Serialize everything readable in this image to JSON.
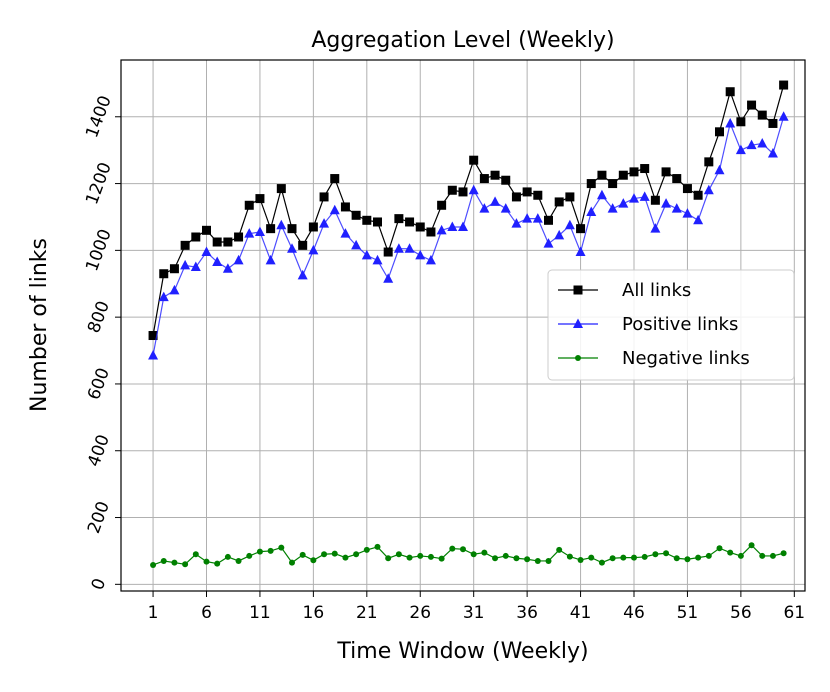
{
  "chart_data": {
    "type": "line",
    "title": "Aggregation Level (Weekly)",
    "xlabel": "Time Window (Weekly)",
    "ylabel": "Number of links",
    "xlim": [
      -2,
      62
    ],
    "ylim": [
      -20,
      1570
    ],
    "x_ticks": [
      1,
      6,
      11,
      16,
      21,
      26,
      31,
      36,
      41,
      46,
      51,
      56,
      61
    ],
    "y_ticks": [
      0,
      200,
      400,
      600,
      800,
      1000,
      1200,
      1400
    ],
    "grid": true,
    "legend_position": "center-right",
    "x": [
      1,
      2,
      3,
      4,
      5,
      6,
      7,
      8,
      9,
      10,
      11,
      12,
      13,
      14,
      15,
      16,
      17,
      18,
      19,
      20,
      21,
      22,
      23,
      24,
      25,
      26,
      27,
      28,
      29,
      30,
      31,
      32,
      33,
      34,
      35,
      36,
      37,
      38,
      39,
      40,
      41,
      42,
      43,
      44,
      45,
      46,
      47,
      48,
      49,
      50,
      51,
      52,
      53,
      54,
      55,
      56,
      57,
      58,
      59,
      60
    ],
    "series": [
      {
        "name": "All links",
        "color": "#000000",
        "marker": "square",
        "values": [
          745,
          930,
          945,
          1015,
          1040,
          1060,
          1025,
          1025,
          1040,
          1135,
          1155,
          1065,
          1185,
          1065,
          1015,
          1070,
          1160,
          1215,
          1130,
          1105,
          1090,
          1085,
          995,
          1095,
          1085,
          1070,
          1055,
          1135,
          1180,
          1175,
          1270,
          1215,
          1225,
          1210,
          1160,
          1175,
          1165,
          1090,
          1145,
          1160,
          1065,
          1200,
          1225,
          1200,
          1225,
          1235,
          1245,
          1150,
          1235,
          1215,
          1185,
          1165,
          1265,
          1355,
          1475,
          1385,
          1435,
          1405,
          1380,
          1495
        ]
      },
      {
        "name": "Positive links",
        "color": "#2020ff",
        "marker": "triangle",
        "values": [
          685,
          860,
          880,
          955,
          950,
          995,
          965,
          945,
          970,
          1050,
          1055,
          970,
          1075,
          1005,
          925,
          1000,
          1080,
          1120,
          1050,
          1015,
          985,
          970,
          915,
          1005,
          1005,
          985,
          970,
          1060,
          1070,
          1070,
          1180,
          1125,
          1145,
          1125,
          1080,
          1095,
          1095,
          1020,
          1045,
          1075,
          995,
          1115,
          1165,
          1125,
          1140,
          1155,
          1160,
          1065,
          1140,
          1125,
          1110,
          1090,
          1180,
          1240,
          1380,
          1300,
          1315,
          1320,
          1290,
          1400
        ]
      },
      {
        "name": "Negative links",
        "color": "#008000",
        "marker": "circle",
        "values": [
          58,
          70,
          65,
          60,
          90,
          68,
          62,
          82,
          70,
          85,
          98,
          100,
          110,
          65,
          88,
          72,
          90,
          92,
          80,
          90,
          103,
          112,
          78,
          90,
          80,
          85,
          82,
          77,
          107,
          105,
          90,
          95,
          78,
          85,
          78,
          75,
          70,
          70,
          103,
          83,
          73,
          80,
          65,
          78,
          80,
          80,
          82,
          90,
          93,
          78,
          75,
          80,
          85,
          108,
          95,
          85,
          117,
          85,
          85,
          93
        ]
      }
    ]
  }
}
